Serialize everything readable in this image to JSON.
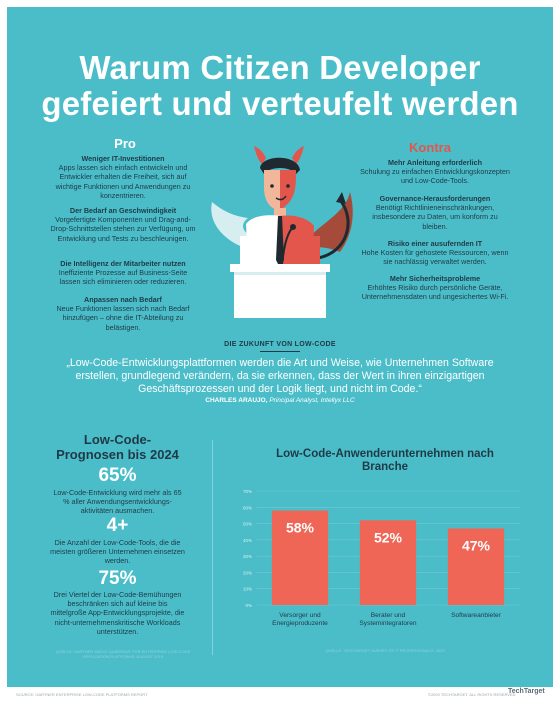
{
  "title": {
    "line1": "Warum Citizen Developer",
    "line2": "gefeiert und verteufelt werden"
  },
  "pro": {
    "heading": "Pro",
    "items": [
      {
        "head": "Weniger IT-Investitionen",
        "text": "Apps lassen sich einfach entwickeln und Entwickler erhalten die Freiheit, sich auf wichtige Funktionen und Anwendungen zu konzentrieren."
      },
      {
        "head": "Der Bedarf an Geschwindigkeit",
        "text": "Vorgefertigte Komponenten und Drag-and-Drop-Schnittstellen stehen zur Verfügung, um Entwicklung und Tests zu beschleunigen."
      },
      {
        "head": "Die Intelligenz der Mitarbeiter nutzen",
        "text": "Ineffiziente Prozesse auf Business-Seite lassen sich eliminieren oder reduzieren."
      },
      {
        "head": "Anpassen nach Bedarf",
        "text": "Neue Funktionen lassen sich nach Bedarf hinzufügen – ohne die IT-Abteilung zu belästigen."
      }
    ]
  },
  "contra": {
    "heading": "Kontra",
    "items": [
      {
        "head": "Mehr Anleitung erforderlich",
        "text": "Schulung zu einfachen Entwicklungskonzepten und Low-Code-Tools."
      },
      {
        "head": "Governance-Herausforderungen",
        "text": "Benötigt Richtlinieneinschränkungen, insbesondere zu Daten, um konform zu bleiben."
      },
      {
        "head": "Risiko einer ausufernden IT",
        "text": "Hohe Kosten für gehostete Ressourcen, wenn sie nachlässig verwaltet werden."
      },
      {
        "head": "Mehr Sicherheitsprobleme",
        "text": "Erhöhtes Risiko durch persönliche Geräte, Unternehmensdaten und ungesichertes Wi-Fi."
      }
    ]
  },
  "future": {
    "heading": "DIE ZUKUNFT VON LOW-CODE",
    "quote": "„Low-Code-Entwicklungsplattformen werden die Art und Weise, wie Unternehmen Software erstellen, grundlegend verändern, da sie erkennen, dass der Wert in ihren einzigartigen Geschäftsprozessen und der Logik liegt, und nicht im Code.“",
    "author": "CHARLES ARAUJO,",
    "role": "Principal Analyst, Intellyx LLC"
  },
  "prognosis": {
    "title": "Low-Code-Prognosen bis 2024",
    "stats": [
      {
        "value": "65%",
        "text": "Low-Code-Entwicklung wird mehr als 65 % aller Anwendungsentwicklungs-aktivitäten ausmachen."
      },
      {
        "value": "4+",
        "text": "Die Anzahl der Low-Code-Tools, die die meisten größeren Unternehmen einsetzen werden."
      },
      {
        "value": "75%",
        "text": "Drei Viertel der Low-Code-Bemühungen beschränken sich auf kleine bis mittelgroße App-Entwicklungsprojekte, die nicht-unternehmenskritische Workloads unterstützen."
      }
    ],
    "source": "QUELLE: GARTNER MAGIC QUADRANT FOR ENTERPRISE LOW-CODE APPLICATION PLATFORMS, AUGUST 2019"
  },
  "chart_title": "Low-Code-Anwenderunternehmen nach Branche",
  "chart_source": "QUELLE: TECHTARGET SURVEY OF IT PROFESSIONALS, 2020",
  "chart_data": {
    "type": "bar",
    "categories": [
      "Versorger und Energieproduzente",
      "Berater und Systemintegratoren",
      "Softwareanbieter"
    ],
    "values": [
      58,
      52,
      47
    ],
    "value_labels": [
      "58%",
      "52%",
      "47%"
    ],
    "ylim": [
      0,
      70
    ],
    "yticks": [
      "0%",
      "10%",
      "20%",
      "30%",
      "40%",
      "50%",
      "60%",
      "70%"
    ],
    "grid": true,
    "color": "#ef6656"
  },
  "footer": {
    "left": "SOURCE: GARTNER ENTERPRISE LOW-CODE PLATFORMS REPORT",
    "right": "©2020 TECHTARGET. ALL RIGHTS RESERVED",
    "logo": "TechTarget"
  },
  "colors": {
    "background": "#4bbdc9",
    "accent": "#e2564b",
    "text": "#1f3a46"
  }
}
